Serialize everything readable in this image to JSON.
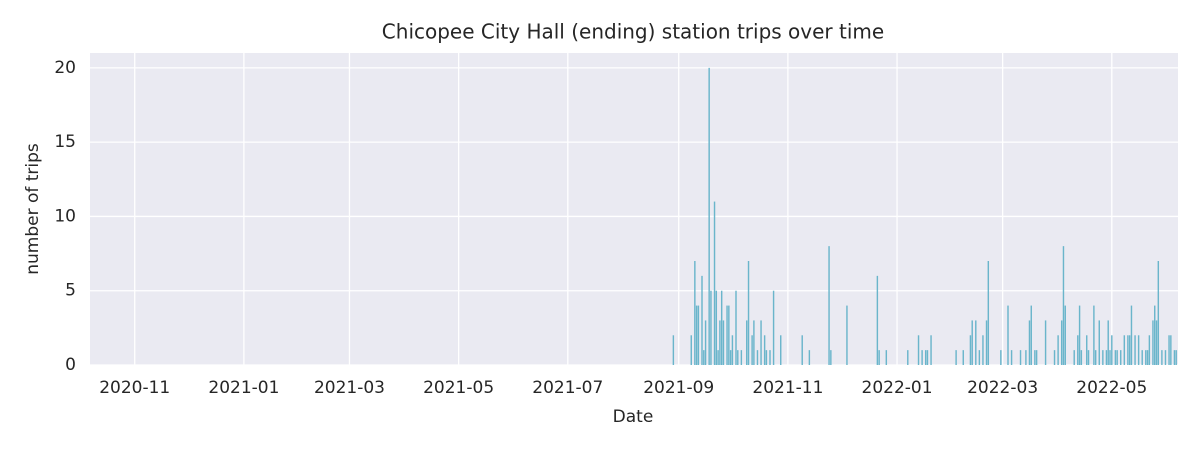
{
  "chart_data": {
    "type": "bar",
    "title": "Chicopee City Hall (ending) station trips over time",
    "x_label": "Date",
    "y_label": "number of trips",
    "color": "#6ab5cb",
    "grid": true,
    "xlim": [
      "2020-10-07",
      "2022-06-07"
    ],
    "xticks": [
      "2020-11",
      "2021-01",
      "2021-03",
      "2021-05",
      "2021-07",
      "2021-09",
      "2021-11",
      "2022-01",
      "2022-03",
      "2022-05"
    ],
    "ylim": [
      0,
      21
    ],
    "yticks": [
      0,
      5,
      10,
      15,
      20
    ],
    "x": [
      "2021-08-29",
      "2021-09-08",
      "2021-09-10",
      "2021-09-11",
      "2021-09-12",
      "2021-09-14",
      "2021-09-15",
      "2021-09-16",
      "2021-09-18",
      "2021-09-19",
      "2021-09-21",
      "2021-09-22",
      "2021-09-23",
      "2021-09-24",
      "2021-09-25",
      "2021-09-26",
      "2021-09-28",
      "2021-09-29",
      "2021-09-30",
      "2021-10-01",
      "2021-10-03",
      "2021-10-04",
      "2021-10-06",
      "2021-10-09",
      "2021-10-10",
      "2021-10-12",
      "2021-10-13",
      "2021-10-15",
      "2021-10-17",
      "2021-10-19",
      "2021-10-20",
      "2021-10-22",
      "2021-10-24",
      "2021-10-28",
      "2021-11-09",
      "2021-11-13",
      "2021-11-24",
      "2021-11-25",
      "2021-12-04",
      "2021-12-21",
      "2021-12-22",
      "2021-12-26",
      "2022-01-07",
      "2022-01-13",
      "2022-01-15",
      "2022-01-17",
      "2022-01-18",
      "2022-01-20",
      "2022-02-03",
      "2022-02-07",
      "2022-02-11",
      "2022-02-12",
      "2022-02-14",
      "2022-02-16",
      "2022-02-18",
      "2022-02-20",
      "2022-02-21",
      "2022-02-28",
      "2022-03-04",
      "2022-03-06",
      "2022-03-11",
      "2022-03-14",
      "2022-03-16",
      "2022-03-17",
      "2022-03-19",
      "2022-03-20",
      "2022-03-25",
      "2022-03-30",
      "2022-04-01",
      "2022-04-03",
      "2022-04-04",
      "2022-04-05",
      "2022-04-10",
      "2022-04-12",
      "2022-04-13",
      "2022-04-14",
      "2022-04-17",
      "2022-04-18",
      "2022-04-21",
      "2022-04-22",
      "2022-04-24",
      "2022-04-26",
      "2022-04-28",
      "2022-04-29",
      "2022-04-30",
      "2022-05-01",
      "2022-05-03",
      "2022-05-04",
      "2022-05-06",
      "2022-05-08",
      "2022-05-10",
      "2022-05-11",
      "2022-05-12",
      "2022-05-14",
      "2022-05-16",
      "2022-05-18",
      "2022-05-20",
      "2022-05-21",
      "2022-05-22",
      "2022-05-24",
      "2022-05-25",
      "2022-05-26",
      "2022-05-27",
      "2022-05-29",
      "2022-05-31",
      "2022-06-02",
      "2022-06-03",
      "2022-06-05",
      "2022-06-06"
    ],
    "values": [
      2,
      2,
      7,
      4,
      4,
      6,
      1,
      3,
      20,
      5,
      11,
      5,
      1,
      3,
      5,
      3,
      4,
      4,
      1,
      2,
      5,
      1,
      1,
      3,
      7,
      2,
      3,
      1,
      3,
      2,
      1,
      1,
      5,
      2,
      2,
      1,
      8,
      1,
      4,
      6,
      1,
      1,
      1,
      2,
      1,
      1,
      1,
      2,
      1,
      1,
      2,
      3,
      3,
      1,
      2,
      3,
      7,
      1,
      4,
      1,
      1,
      1,
      3,
      4,
      1,
      1,
      3,
      1,
      2,
      3,
      8,
      4,
      1,
      2,
      4,
      1,
      2,
      1,
      4,
      1,
      3,
      1,
      1,
      3,
      1,
      2,
      1,
      1,
      1,
      2,
      2,
      2,
      4,
      2,
      2,
      1,
      1,
      1,
      2,
      3,
      4,
      3,
      7,
      1,
      1,
      2,
      2,
      1,
      1
    ]
  }
}
